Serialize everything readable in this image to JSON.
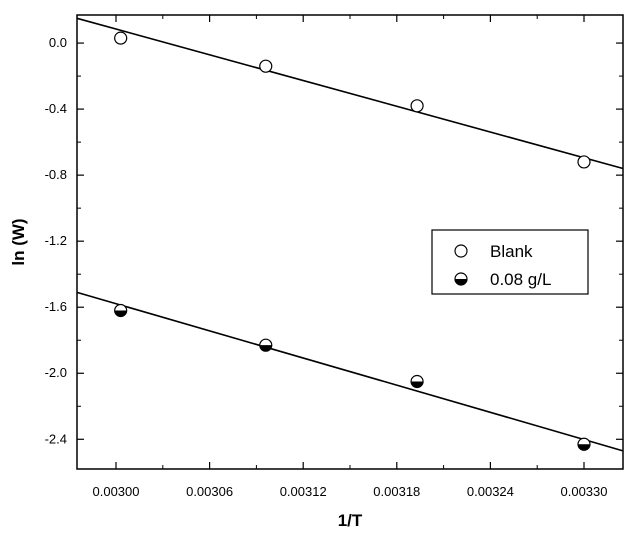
{
  "chart_data": {
    "type": "scatter",
    "title": "",
    "xlabel": "1/T",
    "ylabel": "ln (W)",
    "xlim": [
      0.002975,
      0.003325
    ],
    "ylim": [
      -2.58,
      0.17
    ],
    "x_ticks": [
      0.003,
      0.00306,
      0.00312,
      0.00318,
      0.00324,
      0.0033
    ],
    "x_tick_labels": [
      "0.00300",
      "0.00306",
      "0.00312",
      "0.00318",
      "0.00324",
      "0.00330"
    ],
    "y_ticks": [
      0.0,
      -0.4,
      -0.8,
      -1.2,
      -1.6,
      -2.0,
      -2.4
    ],
    "y_tick_labels": [
      "0.0",
      "-0.4",
      "-0.8",
      "-1.2",
      "-1.6",
      "-2.0",
      "-2.4"
    ],
    "grid": false,
    "legend_position": "right-middle",
    "series": [
      {
        "name": "Blank",
        "marker": "open-circle",
        "points": [
          {
            "x": 0.003003,
            "y": 0.03
          },
          {
            "x": 0.003096,
            "y": -0.14
          },
          {
            "x": 0.003193,
            "y": -0.38
          },
          {
            "x": 0.0033,
            "y": -0.72
          }
        ],
        "fit_line": [
          {
            "x": 0.002975,
            "y": 0.15
          },
          {
            "x": 0.003325,
            "y": -0.76
          }
        ]
      },
      {
        "name": "0.08 g/L",
        "marker": "half-filled-circle",
        "points": [
          {
            "x": 0.003003,
            "y": -1.62
          },
          {
            "x": 0.003096,
            "y": -1.83
          },
          {
            "x": 0.003193,
            "y": -2.05
          },
          {
            "x": 0.0033,
            "y": -2.43
          }
        ],
        "fit_line": [
          {
            "x": 0.002975,
            "y": -1.51
          },
          {
            "x": 0.003325,
            "y": -2.47
          }
        ]
      }
    ],
    "colors": {
      "axis": "#000000",
      "marker_stroke": "#000000",
      "marker_fill": "#000000",
      "background": "#ffffff"
    }
  }
}
